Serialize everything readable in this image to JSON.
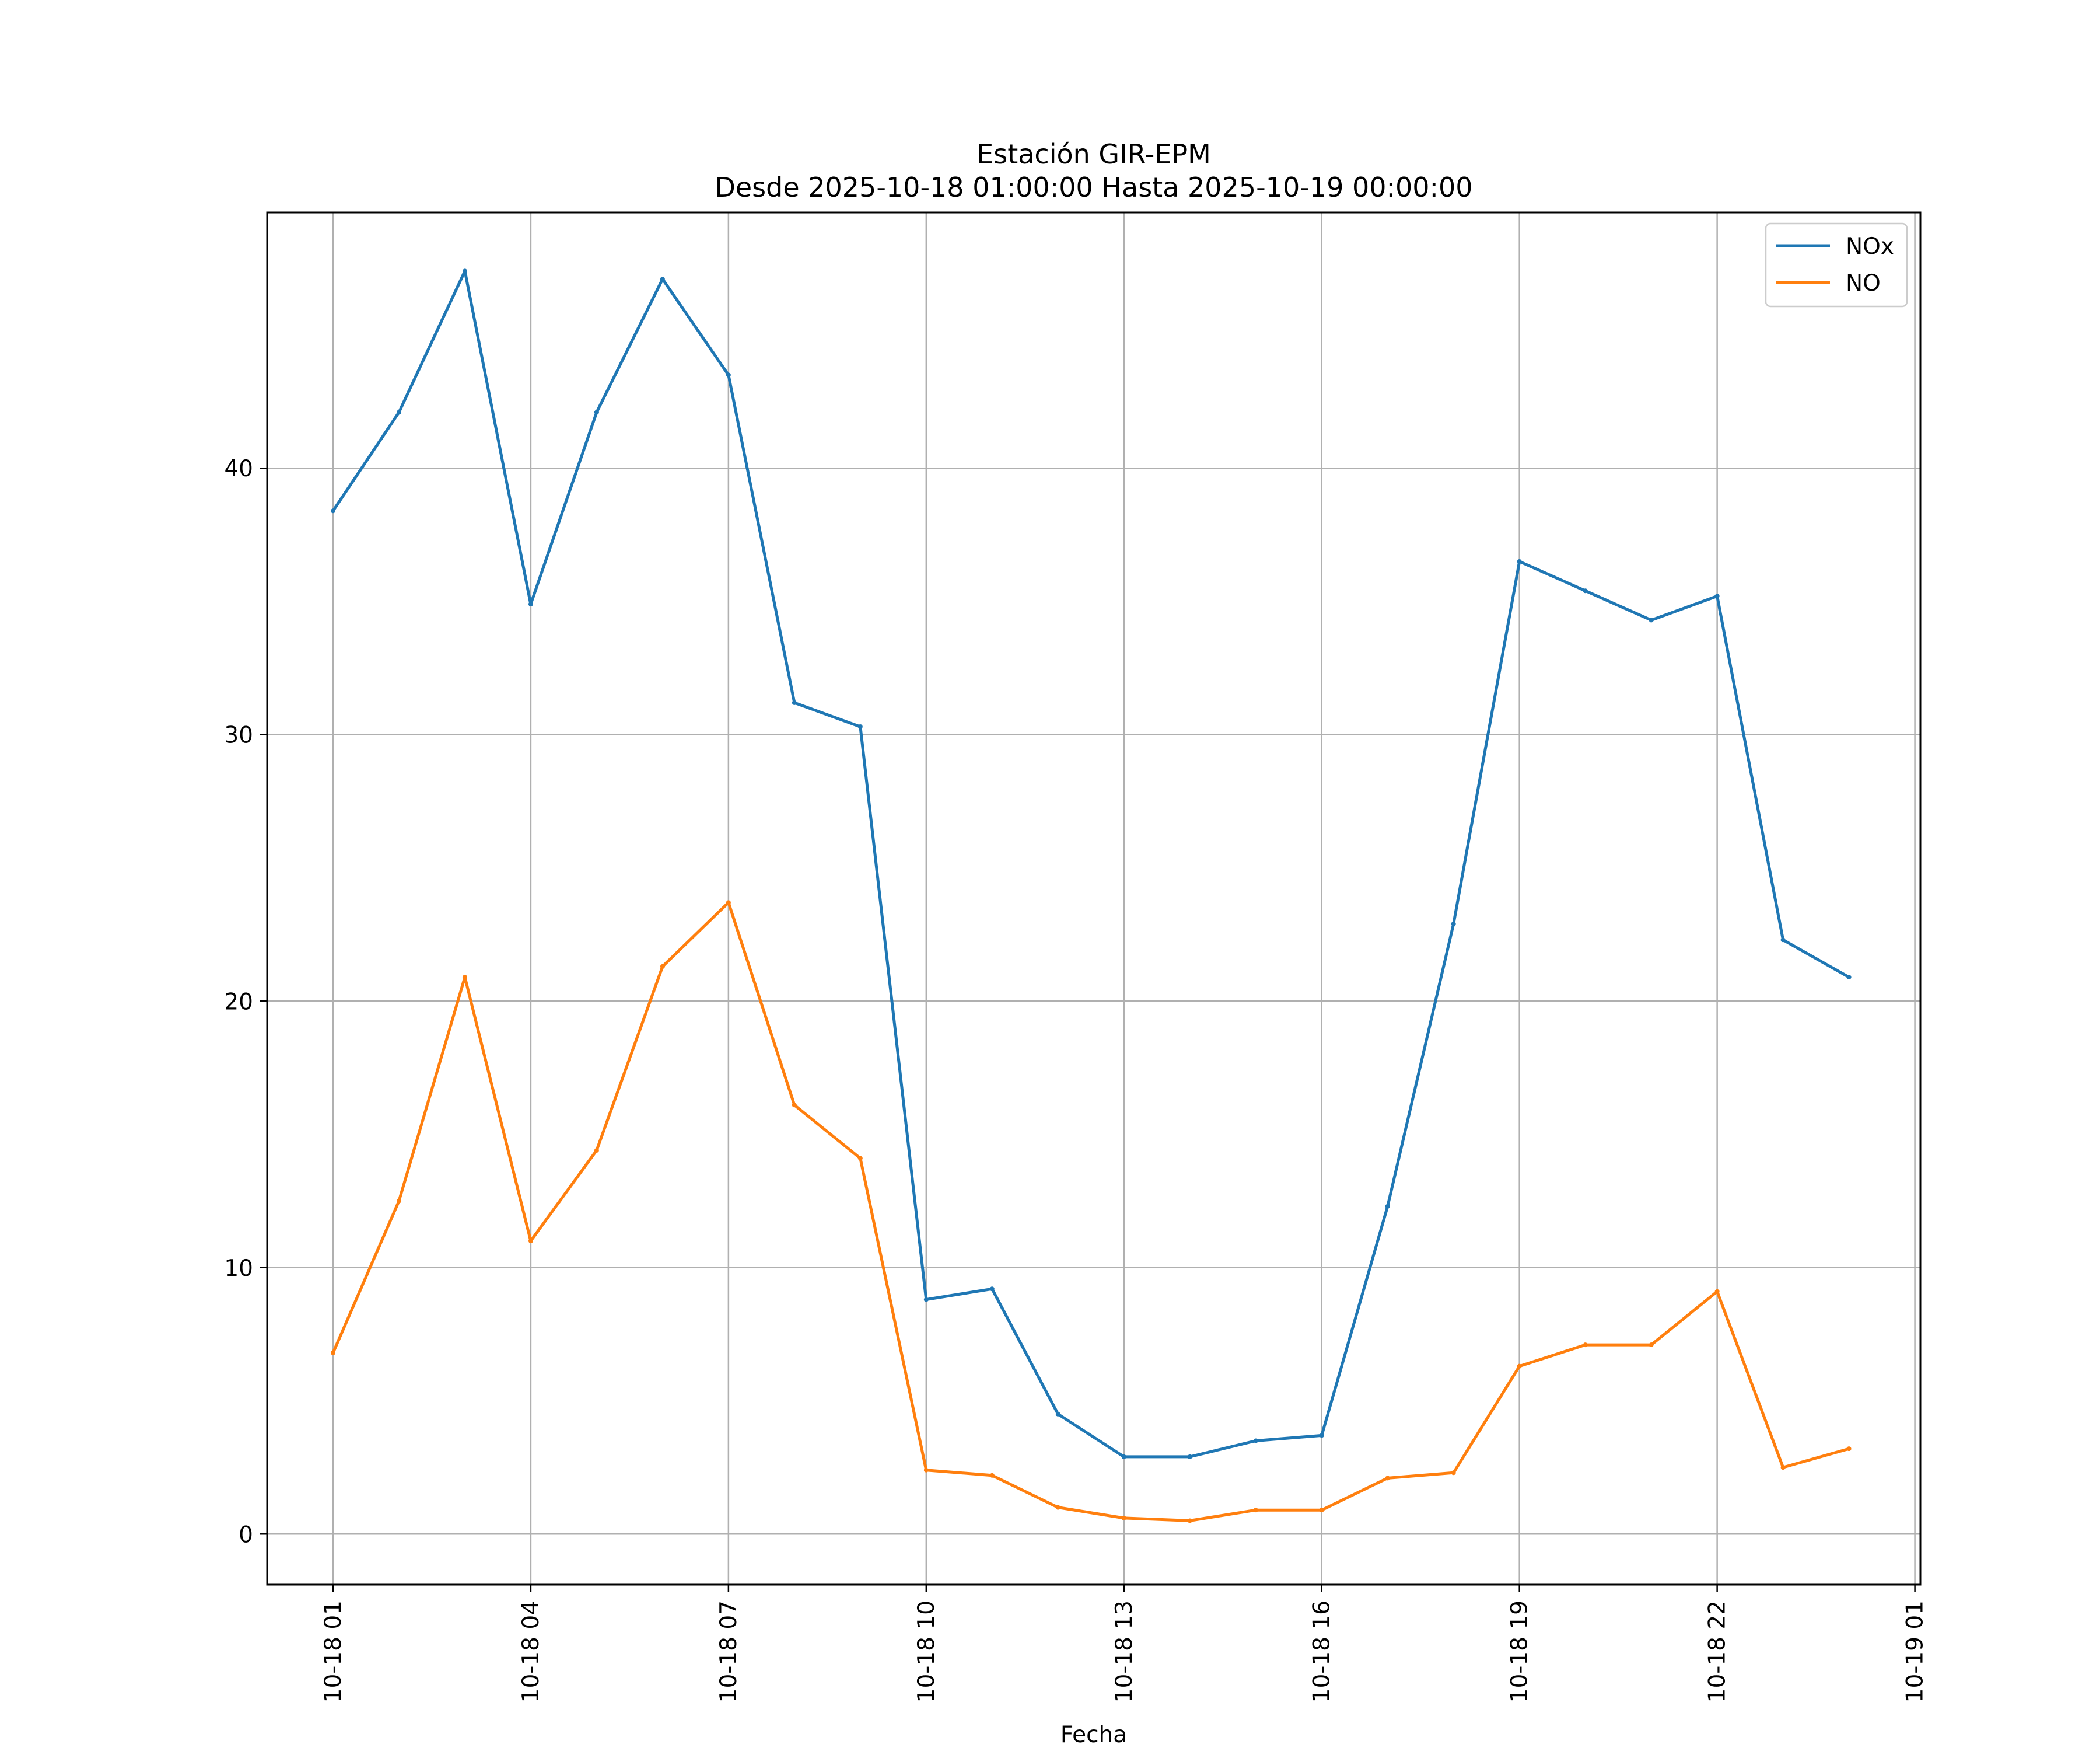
{
  "chart_data": {
    "type": "line",
    "title": "Estación GIR-EPM",
    "subtitle": "Desde 2025-10-18 01:00:00 Hasta 2025-10-19 00:00:00",
    "xlabel": "Fecha",
    "ylabel": "",
    "x": [
      "2025-10-18 01:00",
      "2025-10-18 02:00",
      "2025-10-18 03:00",
      "2025-10-18 04:00",
      "2025-10-18 05:00",
      "2025-10-18 06:00",
      "2025-10-18 07:00",
      "2025-10-18 08:00",
      "2025-10-18 09:00",
      "2025-10-18 10:00",
      "2025-10-18 11:00",
      "2025-10-18 12:00",
      "2025-10-18 13:00",
      "2025-10-18 14:00",
      "2025-10-18 15:00",
      "2025-10-18 16:00",
      "2025-10-18 17:00",
      "2025-10-18 18:00",
      "2025-10-18 19:00",
      "2025-10-18 20:00",
      "2025-10-18 21:00",
      "2025-10-18 22:00",
      "2025-10-18 23:00",
      "2025-10-19 00:00"
    ],
    "x_ticks": [
      "10-18 01",
      "10-18 04",
      "10-18 07",
      "10-18 10",
      "10-18 13",
      "10-18 16",
      "10-18 19",
      "10-18 22",
      "10-19 01"
    ],
    "xlim": [
      "2025-10-18 00:00",
      "2025-10-19 01:05"
    ],
    "y_ticks": [
      0,
      10,
      20,
      30,
      40
    ],
    "ylim": [
      -1.9,
      49.6
    ],
    "grid": true,
    "legend_position": "top-right",
    "series": [
      {
        "name": "NOx",
        "color": "#1f77b4",
        "values": [
          38.4,
          42.1,
          47.4,
          34.9,
          42.1,
          47.1,
          43.5,
          31.2,
          30.3,
          8.8,
          9.2,
          4.5,
          2.9,
          2.9,
          3.5,
          3.7,
          12.3,
          22.9,
          36.5,
          35.4,
          34.3,
          35.2,
          22.3,
          20.9
        ]
      },
      {
        "name": "NO",
        "color": "#ff7f0e",
        "values": [
          6.8,
          12.5,
          20.9,
          11.0,
          14.4,
          21.3,
          23.7,
          16.1,
          14.1,
          2.4,
          2.2,
          1.0,
          0.6,
          0.5,
          0.9,
          0.9,
          2.1,
          2.3,
          6.3,
          7.1,
          7.1,
          9.1,
          2.5,
          3.2
        ]
      }
    ]
  }
}
